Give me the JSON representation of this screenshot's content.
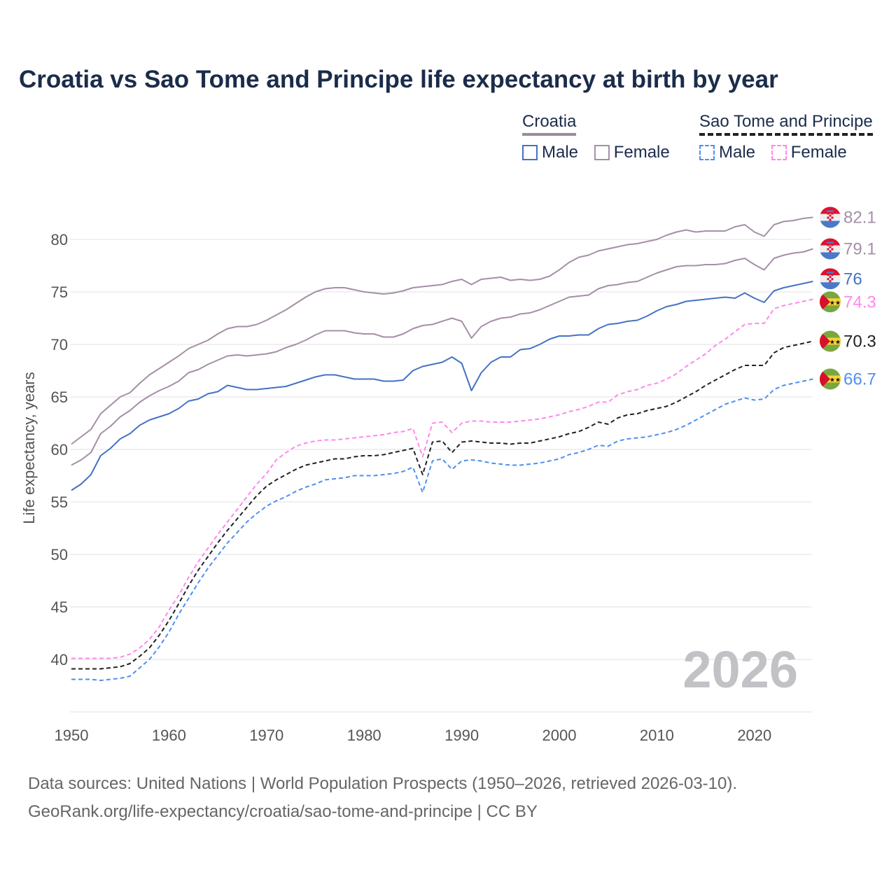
{
  "title": "Croatia vs Sao Tome and Principe life expectancy at birth by year",
  "legend": {
    "groups": [
      {
        "name": "Croatia",
        "items": [
          {
            "label": "Male",
            "color": "#4472c4",
            "dashed": false
          },
          {
            "label": "Female",
            "color": "#a58fa6",
            "dashed": false
          }
        ]
      },
      {
        "name": "Sao Tome and Principe",
        "items": [
          {
            "label": "Male",
            "color": "#4e90f0",
            "dashed": true
          },
          {
            "label": "Female",
            "color": "#ff88ee",
            "dashed": true
          }
        ]
      }
    ]
  },
  "footer": {
    "line1": "Data sources: United Nations | World Population Prospects (1950–2026, retrieved 2026-03-10).",
    "line2": "GeoRank.org/life-expectancy/croatia/sao-tome-and-principe | CC BY"
  },
  "chart_data": {
    "type": "line",
    "title": "Croatia vs Sao Tome and Principe life expectancy at birth by year",
    "xlabel": "",
    "ylabel": "Life expectancy, years",
    "xlim": [
      1950,
      2026
    ],
    "ylim": [
      35,
      83
    ],
    "x_ticks": [
      "1950",
      "1960",
      "1970",
      "1980",
      "1990",
      "2000",
      "2010",
      "2020"
    ],
    "y_ticks": [
      "40",
      "45",
      "50",
      "55",
      "60",
      "65",
      "70",
      "75",
      "80"
    ],
    "grid": true,
    "legend_position": "top-right",
    "year_watermark": "2026",
    "start_year": 1950,
    "series": [
      {
        "name": "Croatia Female",
        "country": "croatia",
        "color": "#a58fa6",
        "dashed": false,
        "end_label": "82.1",
        "values": [
          60.5,
          61.2,
          61.9,
          63.4,
          64.2,
          65.0,
          65.4,
          66.3,
          67.1,
          67.7,
          68.3,
          68.9,
          69.6,
          70.0,
          70.4,
          71.0,
          71.5,
          71.7,
          71.7,
          71.9,
          72.3,
          72.8,
          73.3,
          73.9,
          74.5,
          75.0,
          75.3,
          75.4,
          75.4,
          75.2,
          75.0,
          74.9,
          74.8,
          74.9,
          75.1,
          75.4,
          75.5,
          75.6,
          75.7,
          76.0,
          76.2,
          75.7,
          76.2,
          76.3,
          76.4,
          76.1,
          76.2,
          76.1,
          76.2,
          76.5,
          77.1,
          77.8,
          78.3,
          78.5,
          78.9,
          79.1,
          79.3,
          79.5,
          79.6,
          79.8,
          80.0,
          80.4,
          80.7,
          80.9,
          80.7,
          80.8,
          80.8,
          80.8,
          81.2,
          81.4,
          80.7,
          80.3,
          81.4,
          81.7,
          81.8,
          82.0,
          82.1
        ]
      },
      {
        "name": "Croatia Total",
        "country": "croatia",
        "color": "#a58fa6",
        "dashed": false,
        "end_label": "79.1",
        "values": [
          58.5,
          59.0,
          59.7,
          61.5,
          62.2,
          63.1,
          63.7,
          64.5,
          65.1,
          65.6,
          66.0,
          66.5,
          67.3,
          67.6,
          68.1,
          68.5,
          68.9,
          69.0,
          68.9,
          69.0,
          69.1,
          69.3,
          69.7,
          70.0,
          70.4,
          70.9,
          71.3,
          71.3,
          71.3,
          71.1,
          71.0,
          71.0,
          70.7,
          70.7,
          71.0,
          71.5,
          71.8,
          71.9,
          72.2,
          72.5,
          72.2,
          70.6,
          71.7,
          72.2,
          72.5,
          72.6,
          72.9,
          73.0,
          73.3,
          73.7,
          74.1,
          74.5,
          74.6,
          74.7,
          75.3,
          75.6,
          75.7,
          75.9,
          76.0,
          76.4,
          76.8,
          77.1,
          77.4,
          77.5,
          77.5,
          77.6,
          77.6,
          77.7,
          78.0,
          78.2,
          77.6,
          77.1,
          78.2,
          78.5,
          78.7,
          78.8,
          79.1
        ]
      },
      {
        "name": "Croatia Male",
        "country": "croatia",
        "color": "#4472c4",
        "dashed": false,
        "end_label": "76",
        "values": [
          56.1,
          56.7,
          57.6,
          59.4,
          60.1,
          61.0,
          61.5,
          62.3,
          62.8,
          63.1,
          63.4,
          63.9,
          64.6,
          64.8,
          65.3,
          65.5,
          66.1,
          65.9,
          65.7,
          65.7,
          65.8,
          65.9,
          66.0,
          66.3,
          66.6,
          66.9,
          67.1,
          67.1,
          66.9,
          66.7,
          66.7,
          66.7,
          66.5,
          66.5,
          66.6,
          67.5,
          67.9,
          68.1,
          68.3,
          68.8,
          68.2,
          65.6,
          67.3,
          68.3,
          68.8,
          68.8,
          69.5,
          69.6,
          70.0,
          70.5,
          70.8,
          70.8,
          70.9,
          70.9,
          71.5,
          71.9,
          72.0,
          72.2,
          72.3,
          72.7,
          73.2,
          73.6,
          73.8,
          74.1,
          74.2,
          74.3,
          74.4,
          74.5,
          74.4,
          74.9,
          74.4,
          74.0,
          75.1,
          75.4,
          75.6,
          75.8,
          76.0
        ]
      },
      {
        "name": "Sao Tome and Principe Female",
        "country": "stp",
        "color": "#ff88ee",
        "dashed": true,
        "end_label": "74.3",
        "values": [
          40.1,
          40.1,
          40.1,
          40.1,
          40.1,
          40.2,
          40.5,
          41.1,
          41.9,
          43.1,
          44.7,
          46.1,
          47.8,
          49.3,
          50.6,
          51.9,
          53.1,
          54.3,
          55.5,
          56.7,
          57.7,
          59.0,
          59.7,
          60.3,
          60.6,
          60.8,
          60.9,
          60.9,
          61.0,
          61.1,
          61.2,
          61.3,
          61.4,
          61.6,
          61.7,
          62.0,
          59.3,
          62.5,
          62.6,
          61.6,
          62.5,
          62.7,
          62.7,
          62.6,
          62.6,
          62.6,
          62.7,
          62.8,
          62.9,
          63.1,
          63.3,
          63.6,
          63.8,
          64.1,
          64.5,
          64.5,
          65.2,
          65.5,
          65.7,
          66.1,
          66.3,
          66.7,
          67.2,
          67.9,
          68.5,
          69.1,
          69.9,
          70.5,
          71.2,
          71.9,
          72.0,
          72.0,
          73.4,
          73.7,
          73.9,
          74.1,
          74.3
        ]
      },
      {
        "name": "Sao Tome and Principe Total",
        "country": "stp",
        "color": "#222222",
        "dashed": true,
        "end_label": "70.3",
        "values": [
          39.1,
          39.1,
          39.1,
          39.1,
          39.2,
          39.3,
          39.6,
          40.3,
          41.1,
          42.3,
          43.7,
          45.3,
          47.0,
          48.5,
          49.8,
          51.1,
          52.3,
          53.4,
          54.5,
          55.6,
          56.5,
          57.1,
          57.6,
          58.1,
          58.5,
          58.7,
          58.9,
          59.1,
          59.1,
          59.3,
          59.4,
          59.4,
          59.5,
          59.7,
          59.9,
          60.1,
          57.6,
          60.7,
          60.8,
          59.7,
          60.7,
          60.8,
          60.7,
          60.6,
          60.6,
          60.5,
          60.6,
          60.6,
          60.8,
          61.0,
          61.2,
          61.5,
          61.7,
          62.1,
          62.6,
          62.4,
          63.0,
          63.3,
          63.4,
          63.7,
          63.9,
          64.1,
          64.5,
          65.0,
          65.5,
          66.1,
          66.6,
          67.1,
          67.6,
          68.0,
          68.0,
          68.0,
          69.2,
          69.7,
          69.9,
          70.1,
          70.3
        ]
      },
      {
        "name": "Sao Tome and Principe Male",
        "country": "stp",
        "color": "#4e90f0",
        "dashed": true,
        "end_label": "66.7",
        "values": [
          38.1,
          38.1,
          38.1,
          38.0,
          38.1,
          38.2,
          38.4,
          39.2,
          40.0,
          41.2,
          42.6,
          44.3,
          45.8,
          47.3,
          48.7,
          49.9,
          51.1,
          52.1,
          53.1,
          53.9,
          54.6,
          55.1,
          55.5,
          56.0,
          56.4,
          56.7,
          57.1,
          57.2,
          57.3,
          57.5,
          57.5,
          57.5,
          57.6,
          57.7,
          57.9,
          58.3,
          55.9,
          58.9,
          59.1,
          58.1,
          58.9,
          59.0,
          58.9,
          58.7,
          58.6,
          58.5,
          58.5,
          58.6,
          58.7,
          58.9,
          59.1,
          59.5,
          59.7,
          60.0,
          60.4,
          60.3,
          60.8,
          61.0,
          61.1,
          61.2,
          61.4,
          61.6,
          61.9,
          62.3,
          62.8,
          63.3,
          63.8,
          64.3,
          64.6,
          64.9,
          64.7,
          64.8,
          65.7,
          66.1,
          66.3,
          66.5,
          66.7
        ]
      }
    ]
  }
}
